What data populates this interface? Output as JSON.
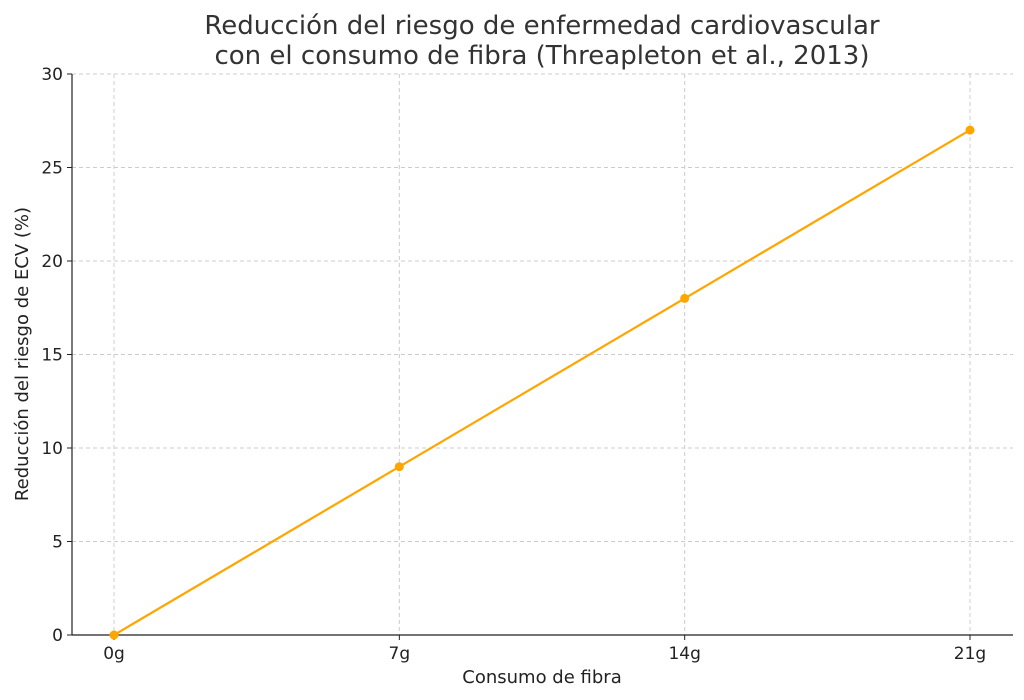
{
  "chart_data": {
    "type": "line",
    "title_lines": [
      "Reducción del riesgo de enfermedad cardiovascular",
      "con el consumo de fibra (Threapleton et al., 2013)"
    ],
    "xlabel": "Consumo de fibra",
    "ylabel": "Reducción del riesgo de ECV (%)",
    "categories": [
      "0g",
      "7g",
      "14g",
      "21g"
    ],
    "series": [
      {
        "values": [
          0,
          9,
          18,
          27
        ],
        "color": "#FFA500"
      }
    ],
    "ylim": [
      0,
      30
    ],
    "yticks": [
      0,
      5,
      10,
      15,
      20,
      25,
      30
    ],
    "grid": true,
    "marker": "circle"
  }
}
